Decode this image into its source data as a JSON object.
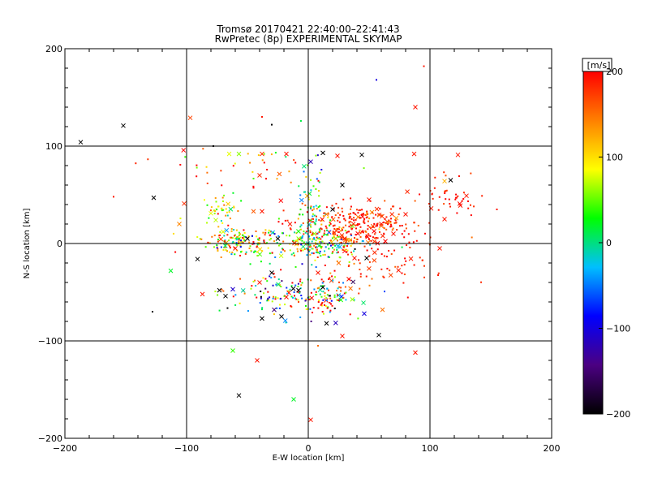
{
  "chart_data": {
    "type": "scatter",
    "title": "Tromsø 20170421 22:40:00–22:41:43",
    "subtitle": "RwPretec (8p) EXPERIMENTAL SKYMAP",
    "xlabel": "E-W location [km]",
    "ylabel": "N-S location [km]",
    "xlim": [
      -200,
      200
    ],
    "ylim": [
      -200,
      200
    ],
    "xticks": [
      -200,
      -100,
      0,
      100,
      200
    ],
    "yticks": [
      -200,
      -100,
      0,
      100,
      200
    ],
    "grid": true,
    "colorbar": {
      "label": "[m/s]",
      "range": [
        -200,
        200
      ],
      "ticks": [
        200,
        100,
        0,
        -100,
        -200
      ],
      "colormap": [
        "#000000",
        "#4b0082",
        "#0000ff",
        "#00bfff",
        "#00ff00",
        "#ffff00",
        "#ff8000",
        "#ff0000"
      ]
    },
    "cross_points": [
      {
        "x": -187,
        "y": 104,
        "v": -200
      },
      {
        "x": -152,
        "y": 121,
        "v": -200
      },
      {
        "x": -127,
        "y": 47,
        "v": -200
      },
      {
        "x": -97,
        "y": 129,
        "v": 170
      },
      {
        "x": -102,
        "y": 41,
        "v": 180
      },
      {
        "x": -106,
        "y": 20,
        "v": 140
      },
      {
        "x": -113,
        "y": -28,
        "v": 20
      },
      {
        "x": -91,
        "y": -16,
        "v": -200
      },
      {
        "x": -87,
        "y": -52,
        "v": 190
      },
      {
        "x": -73,
        "y": -48,
        "v": -200
      },
      {
        "x": -68,
        "y": -54,
        "v": -200
      },
      {
        "x": -62,
        "y": -47,
        "v": -110
      },
      {
        "x": -62,
        "y": -110,
        "v": 40
      },
      {
        "x": -57,
        "y": -156,
        "v": -200
      },
      {
        "x": -42,
        "y": -120,
        "v": 190
      },
      {
        "x": -38,
        "y": -77,
        "v": -200
      },
      {
        "x": -28,
        "y": -68,
        "v": -150
      },
      {
        "x": -22,
        "y": -75,
        "v": -200
      },
      {
        "x": -12,
        "y": -160,
        "v": 20
      },
      {
        "x": 2,
        "y": -181,
        "v": 190
      },
      {
        "x": 15,
        "y": -82,
        "v": -200
      },
      {
        "x": 28,
        "y": -95,
        "v": 190
      },
      {
        "x": 46,
        "y": -72,
        "v": -100
      },
      {
        "x": 58,
        "y": -94,
        "v": -200
      },
      {
        "x": 61,
        "y": -68,
        "v": 150
      },
      {
        "x": 88,
        "y": -112,
        "v": 190
      },
      {
        "x": 88,
        "y": 140,
        "v": 190
      },
      {
        "x": 123,
        "y": 91,
        "v": 190
      },
      {
        "x": 101,
        "y": 36,
        "v": 190
      },
      {
        "x": 112,
        "y": 64,
        "v": 120
      },
      {
        "x": 117,
        "y": 65,
        "v": -200
      },
      {
        "x": 130,
        "y": 49,
        "v": 190
      },
      {
        "x": 125,
        "y": 39,
        "v": 190
      },
      {
        "x": 112,
        "y": 25,
        "v": 190
      },
      {
        "x": 108,
        "y": -5,
        "v": 190
      },
      {
        "x": 87,
        "y": 92,
        "v": 190
      },
      {
        "x": 44,
        "y": 91,
        "v": -200
      },
      {
        "x": 24,
        "y": 90,
        "v": 190
      },
      {
        "x": 12,
        "y": 93,
        "v": -200
      },
      {
        "x": 2,
        "y": 84,
        "v": -120
      },
      {
        "x": -18,
        "y": 92,
        "v": 190
      },
      {
        "x": -38,
        "y": 92,
        "v": 180
      },
      {
        "x": -57,
        "y": 92,
        "v": 60
      },
      {
        "x": -65,
        "y": 92,
        "v": 80
      },
      {
        "x": -40,
        "y": 70,
        "v": 180
      },
      {
        "x": -38,
        "y": 33,
        "v": 190
      },
      {
        "x": -45,
        "y": 33,
        "v": 160
      },
      {
        "x": -50,
        "y": 5,
        "v": -200
      },
      {
        "x": -60,
        "y": -5,
        "v": 190
      },
      {
        "x": -70,
        "y": 12,
        "v": 80
      },
      {
        "x": -80,
        "y": 31,
        "v": 80
      },
      {
        "x": -76,
        "y": 24,
        "v": 70
      },
      {
        "x": 20,
        "y": 35,
        "v": -200
      },
      {
        "x": 28,
        "y": 60,
        "v": -200
      },
      {
        "x": 15,
        "y": 30,
        "v": 150
      },
      {
        "x": 38,
        "y": -15,
        "v": 190
      },
      {
        "x": 48,
        "y": -15,
        "v": -200
      },
      {
        "x": 25,
        "y": -20,
        "v": 150
      },
      {
        "x": 12,
        "y": -45,
        "v": -200
      },
      {
        "x": 8,
        "y": -30,
        "v": 190
      },
      {
        "x": -8,
        "y": -48,
        "v": -200
      },
      {
        "x": -18,
        "y": -55,
        "v": 190
      },
      {
        "x": -30,
        "y": -30,
        "v": -200
      },
      {
        "x": -40,
        "y": -40,
        "v": 190
      },
      {
        "x": 60,
        "y": 20,
        "v": 190
      },
      {
        "x": 70,
        "y": 10,
        "v": 190
      },
      {
        "x": 80,
        "y": 30,
        "v": 190
      },
      {
        "x": 50,
        "y": 45,
        "v": 190
      },
      {
        "x": -15,
        "y": 20,
        "v": 190
      },
      {
        "x": -25,
        "y": 5,
        "v": -200
      },
      {
        "x": 30,
        "y": 5,
        "v": 190
      },
      {
        "x": 5,
        "y": 10,
        "v": 60
      }
    ],
    "dot_points": [
      {
        "x": -160,
        "y": 48,
        "v": 190
      },
      {
        "x": -128,
        "y": -70,
        "v": -200
      },
      {
        "x": 56,
        "y": 168,
        "v": -100
      },
      {
        "x": 95,
        "y": 182,
        "v": 190
      },
      {
        "x": -38,
        "y": 130,
        "v": 190
      },
      {
        "x": -30,
        "y": 122,
        "v": -200
      },
      {
        "x": -78,
        "y": 100,
        "v": -200
      },
      {
        "x": 155,
        "y": 35,
        "v": 190
      },
      {
        "x": 8,
        "y": -105,
        "v": 150
      }
    ],
    "clusters": [
      {
        "cx": -55,
        "cy": 2,
        "sx": 16,
        "sy": 7,
        "n": 160,
        "vmean": 90,
        "vsd": 80
      },
      {
        "cx": 5,
        "cy": 0,
        "sx": 22,
        "sy": 10,
        "n": 210,
        "vmean": 60,
        "vsd": 90
      },
      {
        "cx": 42,
        "cy": 18,
        "sx": 28,
        "sy": 12,
        "n": 280,
        "vmean": 185,
        "vsd": 25
      },
      {
        "cx": -22,
        "cy": -50,
        "sx": 22,
        "sy": 12,
        "n": 120,
        "vmean": 40,
        "vsd": 140
      },
      {
        "cx": 15,
        "cy": -55,
        "sx": 14,
        "sy": 10,
        "n": 80,
        "vmean": 60,
        "vsd": 150
      },
      {
        "cx": -75,
        "cy": 35,
        "sx": 10,
        "sy": 8,
        "n": 40,
        "vmean": 80,
        "vsd": 50
      },
      {
        "cx": 2,
        "cy": 38,
        "sx": 6,
        "sy": 28,
        "n": 60,
        "vmean": 10,
        "vsd": 60
      },
      {
        "cx": 118,
        "cy": 48,
        "sx": 14,
        "sy": 10,
        "n": 40,
        "vmean": 190,
        "vsd": 15
      },
      {
        "cx": -40,
        "cy": 80,
        "sx": 40,
        "sy": 12,
        "n": 40,
        "vmean": 140,
        "vsd": 70
      },
      {
        "cx": 60,
        "cy": -25,
        "sx": 30,
        "sy": 18,
        "n": 60,
        "vmean": 185,
        "vsd": 20
      }
    ]
  }
}
